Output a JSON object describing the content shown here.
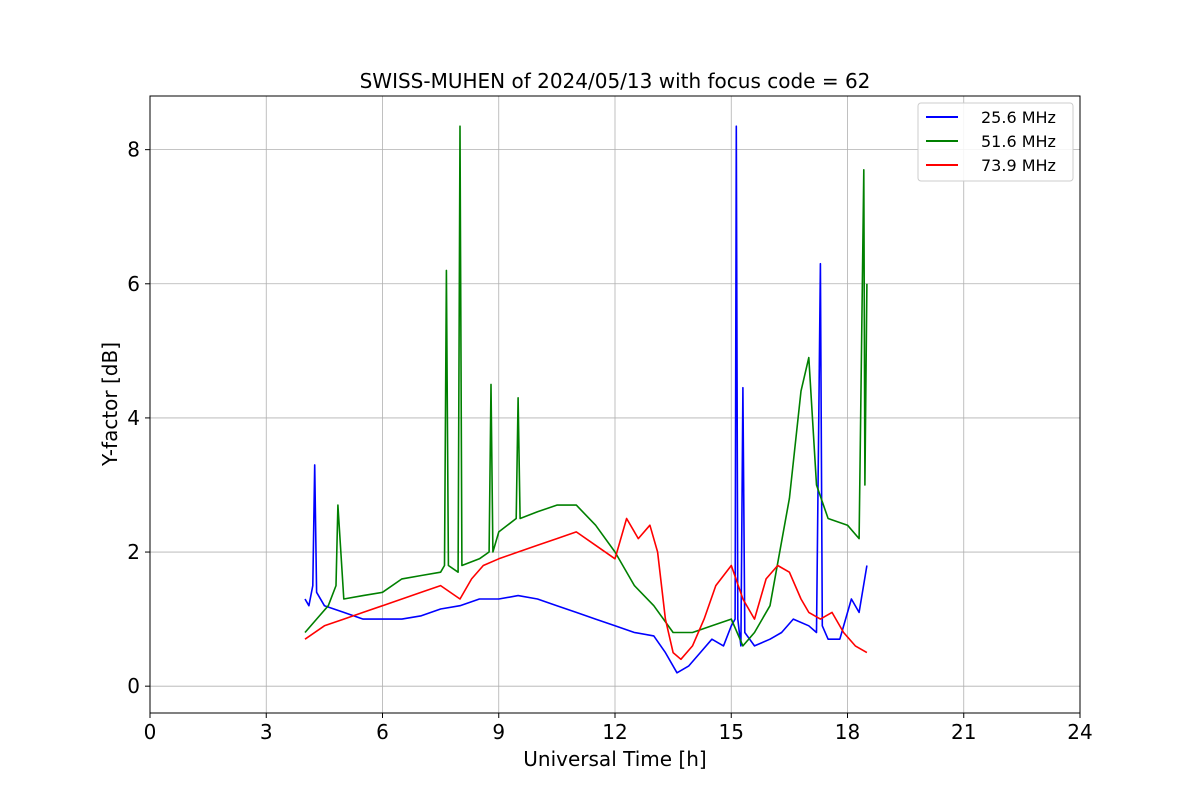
{
  "chart_data": {
    "type": "line",
    "title": "SWISS-MUHEN of 2024/05/13 with focus code = 62",
    "xlabel": "Universal Time [h]",
    "ylabel": "Y-factor [dB]",
    "xlim": [
      0,
      24
    ],
    "ylim": [
      -0.4,
      8.8
    ],
    "xticks": [
      0,
      3,
      6,
      9,
      12,
      15,
      18,
      21,
      24
    ],
    "yticks": [
      0,
      2,
      4,
      6,
      8
    ],
    "grid": true,
    "legend_position": "top-right",
    "series": [
      {
        "name": "25.6 MHz",
        "color": "#0000ff",
        "x": [
          4.0,
          4.1,
          4.2,
          4.25,
          4.3,
          4.5,
          5.0,
          5.5,
          6.0,
          6.5,
          7.0,
          7.5,
          8.0,
          8.5,
          9.0,
          9.5,
          10.0,
          10.5,
          11.0,
          11.5,
          12.0,
          12.5,
          13.0,
          13.3,
          13.6,
          13.9,
          14.2,
          14.5,
          14.8,
          15.0,
          15.1,
          15.13,
          15.17,
          15.25,
          15.3,
          15.35,
          15.6,
          16.0,
          16.3,
          16.6,
          17.0,
          17.2,
          17.3,
          17.35,
          17.5,
          17.8,
          18.1,
          18.3,
          18.5
        ],
        "y": [
          1.3,
          1.2,
          1.5,
          3.3,
          1.4,
          1.2,
          1.1,
          1.0,
          1.0,
          1.0,
          1.05,
          1.15,
          1.2,
          1.3,
          1.3,
          1.35,
          1.3,
          1.2,
          1.1,
          1.0,
          0.9,
          0.8,
          0.75,
          0.5,
          0.2,
          0.3,
          0.5,
          0.7,
          0.6,
          0.9,
          1.0,
          8.35,
          1.0,
          0.6,
          4.45,
          0.8,
          0.6,
          0.7,
          0.8,
          1.0,
          0.9,
          0.8,
          6.3,
          0.9,
          0.7,
          0.7,
          1.3,
          1.1,
          1.8
        ]
      },
      {
        "name": "51.6 MHz",
        "color": "#008000",
        "x": [
          4.0,
          4.3,
          4.6,
          4.8,
          4.85,
          5.0,
          5.5,
          6.0,
          6.5,
          7.0,
          7.5,
          7.6,
          7.65,
          7.7,
          7.95,
          8.0,
          8.05,
          8.5,
          8.75,
          8.8,
          8.85,
          9.0,
          9.45,
          9.5,
          9.55,
          10.0,
          10.5,
          11.0,
          11.5,
          12.0,
          12.5,
          13.0,
          13.5,
          14.0,
          14.5,
          15.0,
          15.3,
          15.6,
          16.0,
          16.5,
          16.8,
          17.0,
          17.2,
          17.5,
          18.0,
          18.3,
          18.42,
          18.45,
          18.5
        ],
        "y": [
          0.8,
          1.0,
          1.2,
          1.5,
          2.7,
          1.3,
          1.35,
          1.4,
          1.6,
          1.65,
          1.7,
          1.8,
          6.2,
          1.8,
          1.7,
          8.35,
          1.8,
          1.9,
          2.0,
          4.5,
          2.0,
          2.3,
          2.5,
          4.3,
          2.5,
          2.6,
          2.7,
          2.7,
          2.4,
          2.0,
          1.5,
          1.2,
          0.8,
          0.8,
          0.9,
          1.0,
          0.6,
          0.8,
          1.2,
          2.8,
          4.4,
          4.9,
          3.0,
          2.5,
          2.4,
          2.2,
          7.7,
          3.0,
          6.0
        ]
      },
      {
        "name": "73.9 MHz",
        "color": "#ff0000",
        "x": [
          4.0,
          4.5,
          5.0,
          5.5,
          6.0,
          6.5,
          7.0,
          7.5,
          8.0,
          8.3,
          8.6,
          9.0,
          9.5,
          10.0,
          10.5,
          11.0,
          11.5,
          12.0,
          12.3,
          12.6,
          12.9,
          13.1,
          13.3,
          13.5,
          13.7,
          14.0,
          14.3,
          14.6,
          15.0,
          15.3,
          15.6,
          15.9,
          16.2,
          16.5,
          16.8,
          17.0,
          17.3,
          17.6,
          17.9,
          18.2,
          18.5
        ],
        "y": [
          0.7,
          0.9,
          1.0,
          1.1,
          1.2,
          1.3,
          1.4,
          1.5,
          1.3,
          1.6,
          1.8,
          1.9,
          2.0,
          2.1,
          2.2,
          2.3,
          2.1,
          1.9,
          2.5,
          2.2,
          2.4,
          2.0,
          1.0,
          0.5,
          0.4,
          0.6,
          1.0,
          1.5,
          1.8,
          1.3,
          1.0,
          1.6,
          1.8,
          1.7,
          1.3,
          1.1,
          1.0,
          1.1,
          0.8,
          0.6,
          0.5
        ]
      }
    ]
  }
}
